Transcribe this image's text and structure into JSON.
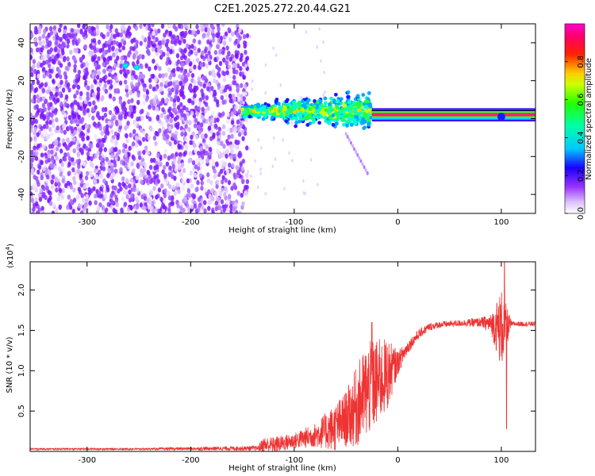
{
  "title": "C2E1.2025.272.20.44.G21",
  "chart_data": [
    {
      "type": "heatmap",
      "name": "spectrogram",
      "xlabel": "Height of straight line (km)",
      "ylabel": "Frequency (Hz)",
      "xlim": [
        -355,
        133
      ],
      "ylim": [
        -50,
        50
      ],
      "xticks": [
        -300,
        -200,
        -100,
        0,
        100
      ],
      "xtick_labels": [
        "-300",
        "-200",
        "-100",
        "0",
        "100"
      ],
      "yticks": [
        -40,
        -20,
        0,
        20,
        40
      ],
      "ytick_labels": [
        "-40",
        "-20",
        "0",
        "20",
        "40"
      ],
      "colorbar": {
        "label": "Normalized spectral amplitude",
        "range": [
          0,
          1
        ],
        "ticks": [
          0.0,
          0.2,
          0.4,
          0.6,
          0.8
        ],
        "tick_labels": [
          "0.0",
          "0.2",
          "0.4",
          "0.6",
          "0.8"
        ],
        "colormap": [
          "#ffffff",
          "#c088ff",
          "#7700ff",
          "#0000ff",
          "#00ffff",
          "#00ff00",
          "#ffff00",
          "#ff0000",
          "#ff00ff"
        ]
      },
      "regions": [
        {
          "desc": "broadband noise",
          "x_range": [
            -355,
            -150
          ],
          "freq_range": [
            -50,
            50
          ],
          "amplitude": 0.1
        },
        {
          "desc": "signal band (turbulent)",
          "x_range": [
            -150,
            -25
          ],
          "freq_center": 4,
          "amplitude": 0.5
        },
        {
          "desc": "signal band (stable)",
          "x_range": [
            -25,
            133
          ],
          "freq_center": 2,
          "amplitude": 0.9
        }
      ]
    },
    {
      "type": "line",
      "name": "snr",
      "xlabel": "Height of straight line (km)",
      "ylabel": "SNR (10 * v/v)",
      "y_multiplier_label": "(x10",
      "y_multiplier_exp": "4",
      "y_multiplier_close": ")",
      "xlim": [
        -355,
        133
      ],
      "ylim": [
        0,
        2.35
      ],
      "xticks": [
        -300,
        -200,
        -100,
        0,
        100
      ],
      "xtick_labels": [
        "-300",
        "-200",
        "-100",
        "0",
        "100"
      ],
      "yticks": [
        0.5,
        1.0,
        1.5,
        2.0
      ],
      "ytick_labels": [
        "0.5",
        "1.0",
        "1.5",
        "2.0"
      ],
      "color": "#ee3333",
      "envelope": {
        "x": [
          -355,
          -250,
          -135,
          -130,
          -120,
          -100,
          -80,
          -60,
          -50,
          -40,
          -30,
          -20,
          -10,
          0,
          10,
          20,
          30,
          40,
          60,
          80,
          90,
          100,
          110,
          120,
          133
        ],
        "mean": [
          0.03,
          0.03,
          0.04,
          0.08,
          0.08,
          0.13,
          0.2,
          0.3,
          0.4,
          0.55,
          0.75,
          0.85,
          0.95,
          1.1,
          1.3,
          1.45,
          1.54,
          1.57,
          1.59,
          1.6,
          1.58,
          1.52,
          1.58,
          1.58,
          1.58
        ],
        "spread": [
          0.01,
          0.01,
          0.03,
          0.1,
          0.1,
          0.1,
          0.15,
          0.3,
          0.35,
          0.5,
          0.6,
          0.55,
          0.45,
          0.15,
          0.08,
          0.06,
          0.05,
          0.04,
          0.04,
          0.06,
          0.12,
          0.5,
          0.03,
          0.03,
          0.03
        ]
      },
      "peaks": [
        {
          "x": -25,
          "y": 1.6
        },
        {
          "x": 103,
          "y": 2.35
        },
        {
          "x": 105,
          "y": 0.28
        }
      ]
    }
  ]
}
